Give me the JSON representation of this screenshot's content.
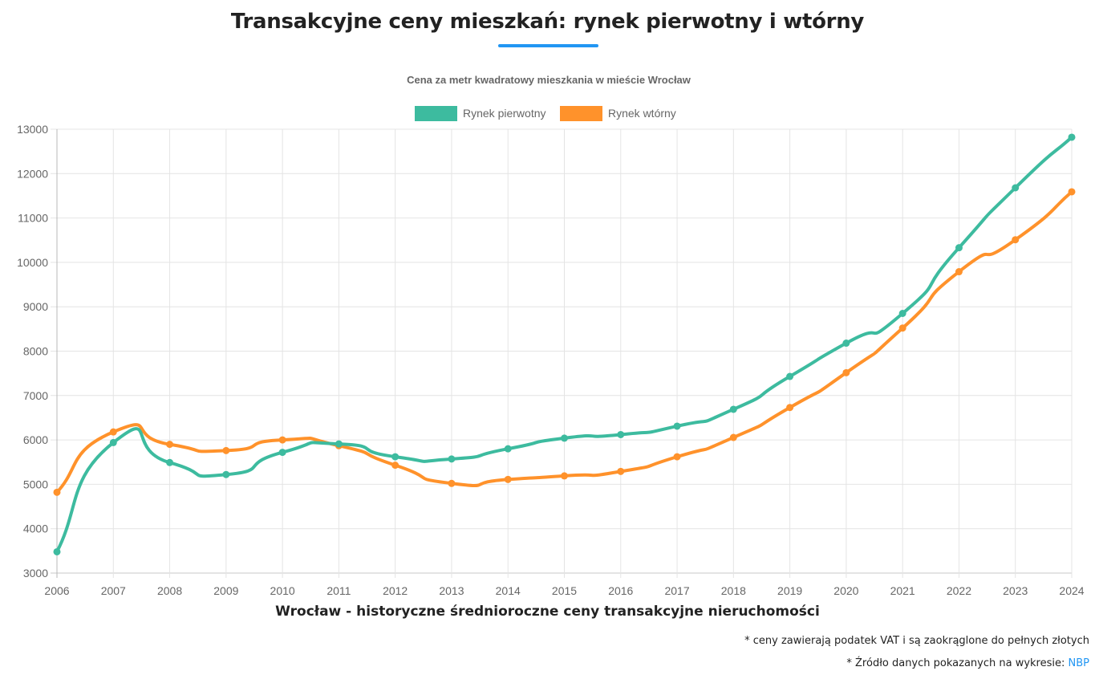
{
  "header": {
    "title": "Transakcyjne ceny mieszkań: rynek pierwotny i wtórny",
    "accent_color": "#2196f3"
  },
  "chart_data": {
    "type": "line",
    "title": "Cena za metr kwadratowy mieszkania w mieście Wrocław",
    "xlabel": "Wrocław - historyczne średnioroczne ceny transakcyjne nieruchomości",
    "ylabel": "",
    "ylim": [
      3000,
      13000
    ],
    "yticks": [
      "3000",
      "4000",
      "5000",
      "6000",
      "7000",
      "8000",
      "9000",
      "10000",
      "11000",
      "12000",
      "13000"
    ],
    "grid": true,
    "legend_position": "top-center",
    "categories": [
      "2006",
      "2007",
      "2008",
      "2009",
      "2010",
      "2011",
      "2012",
      "2013",
      "2014",
      "2015",
      "2016",
      "2017",
      "2018",
      "2019",
      "2020",
      "2021",
      "2022",
      "2023",
      "2024"
    ],
    "series": [
      {
        "name": "Rynek pierwotny",
        "color": "#3dbb9f",
        "values": [
          3480,
          5940,
          5490,
          5220,
          5720,
          5910,
          5620,
          5570,
          5800,
          6040,
          6120,
          6310,
          6690,
          7430,
          8180,
          8850,
          10330,
          11680,
          12820
        ]
      },
      {
        "name": "Rynek wtórny",
        "color": "#ff922b",
        "values": [
          4820,
          6180,
          5900,
          5760,
          6000,
          5870,
          5430,
          5020,
          5110,
          5190,
          5290,
          5620,
          6055,
          6730,
          7515,
          8520,
          9790,
          10510,
          11590
        ]
      }
    ]
  },
  "footer": {
    "note_vat": "* ceny zawierają podatek VAT i są zaokrąglone do pełnych złotych",
    "note_source": "* Źródło danych pokazanych na wykresie:",
    "source_link": "NBP"
  }
}
